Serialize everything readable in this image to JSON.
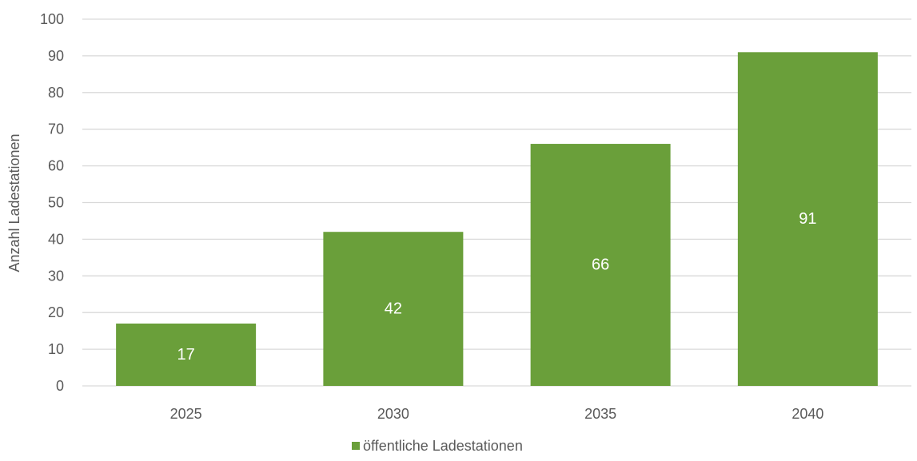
{
  "chart_data": {
    "type": "bar",
    "categories": [
      "2025",
      "2030",
      "2035",
      "2040"
    ],
    "series": [
      {
        "name": "öffentliche Ladestationen",
        "values": [
          17,
          42,
          66,
          91
        ],
        "data_labels": [
          "17",
          "42",
          "66",
          "91"
        ],
        "color": "#6a9f3a"
      }
    ],
    "title": "",
    "xlabel": "",
    "ylabel": "Anzahl Ladestationen",
    "ylim": [
      0,
      100
    ],
    "yticks": [
      0,
      10,
      20,
      30,
      40,
      50,
      60,
      70,
      80,
      90,
      100
    ],
    "ytick_labels": [
      "0",
      "10",
      "20",
      "30",
      "40",
      "50",
      "60",
      "70",
      "80",
      "90",
      "100"
    ],
    "grid": true,
    "legend_position": "bottom"
  },
  "colors": {
    "bar": "#6a9f3a",
    "grid": "#d9d9d9",
    "axis_text": "#595959",
    "data_label": "#ffffff",
    "background": "#ffffff"
  }
}
